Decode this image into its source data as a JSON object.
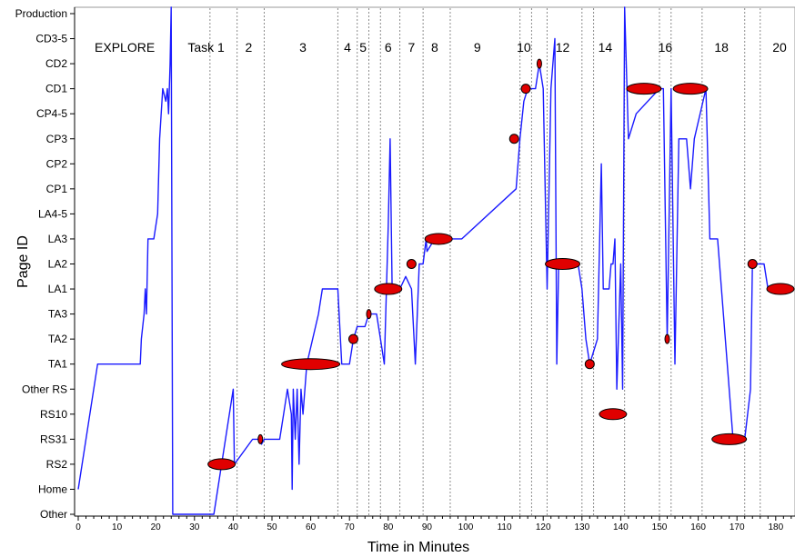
{
  "chart_data": {
    "type": "line",
    "xlabel": "Time in Minutes",
    "ylabel": "Page ID",
    "xlim": [
      0,
      185
    ],
    "x_ticks": [
      0,
      10,
      20,
      30,
      40,
      50,
      60,
      70,
      80,
      90,
      100,
      110,
      120,
      130,
      140,
      150,
      160,
      170,
      180
    ],
    "y_categories": [
      "Other",
      "Home",
      "RS2",
      "RS31",
      "RS10",
      "Other RS",
      "TA1",
      "TA2",
      "TA3",
      "LA1",
      "LA2",
      "LA3",
      "LA4-5",
      "CP1",
      "CP2",
      "CP3",
      "CP4-5",
      "CD1",
      "CD2",
      "CD3-5",
      "Production"
    ],
    "line_color": "#1a1aff",
    "marker_color": "#e00000",
    "task_boundaries": [
      34,
      41,
      48,
      67,
      72,
      75,
      78,
      83,
      89,
      96,
      114,
      117,
      121,
      130,
      133,
      141,
      150,
      153,
      161,
      172,
      176
    ],
    "segment_labels": [
      {
        "text": "EXPLORE",
        "x": 12
      },
      {
        "text": "Task 1",
        "x": 33
      },
      {
        "text": "2",
        "x": 44
      },
      {
        "text": "3",
        "x": 58
      },
      {
        "text": "4",
        "x": 69.5
      },
      {
        "text": "5",
        "x": 73.5
      },
      {
        "text": "6",
        "x": 80
      },
      {
        "text": "7",
        "x": 86
      },
      {
        "text": "8",
        "x": 92
      },
      {
        "text": "9",
        "x": 103
      },
      {
        "text": "10",
        "x": 115
      },
      {
        "text": "12",
        "x": 125
      },
      {
        "text": "14",
        "x": 136
      },
      {
        "text": "16",
        "x": 151.5
      },
      {
        "text": "18",
        "x": 166
      },
      {
        "text": "20",
        "x": 181
      }
    ],
    "series": [
      {
        "points": [
          [
            0,
            1
          ],
          [
            5,
            6
          ],
          [
            16,
            6
          ],
          [
            16.3,
            7
          ],
          [
            17,
            8
          ],
          [
            17.3,
            9
          ],
          [
            17.6,
            8
          ],
          [
            18,
            11
          ],
          [
            19.5,
            11
          ],
          [
            20.5,
            12
          ],
          [
            21,
            15
          ],
          [
            21.8,
            17
          ],
          [
            22.6,
            16.5
          ],
          [
            23,
            17
          ],
          [
            23.3,
            16
          ],
          [
            23.7,
            18
          ],
          [
            24,
            21
          ],
          [
            24.4,
            0
          ],
          [
            35,
            0
          ],
          [
            40,
            5
          ],
          [
            40.3,
            2
          ],
          [
            45,
            3
          ],
          [
            47,
            3
          ],
          [
            47.3,
            2.8
          ],
          [
            48,
            3
          ],
          [
            52,
            3
          ],
          [
            53,
            4
          ],
          [
            54,
            5
          ],
          [
            55,
            4
          ],
          [
            55.2,
            1
          ],
          [
            55.5,
            5
          ],
          [
            56,
            3
          ],
          [
            56.5,
            5
          ],
          [
            57,
            2
          ],
          [
            57.5,
            5
          ],
          [
            58,
            4
          ],
          [
            59,
            6
          ],
          [
            62,
            8
          ],
          [
            63,
            9
          ],
          [
            67,
            9
          ],
          [
            68,
            6
          ],
          [
            70,
            6
          ],
          [
            71,
            7
          ],
          [
            72,
            7.5
          ],
          [
            74,
            7.5
          ],
          [
            75,
            8
          ],
          [
            77,
            8
          ],
          [
            78,
            7
          ],
          [
            79,
            6
          ],
          [
            80,
            11.5
          ],
          [
            80.5,
            15
          ],
          [
            81,
            9
          ],
          [
            83,
            9
          ],
          [
            84.5,
            9.5
          ],
          [
            86,
            9
          ],
          [
            87,
            6
          ],
          [
            88,
            10
          ],
          [
            89,
            10
          ],
          [
            89.8,
            11
          ],
          [
            90,
            10.5
          ],
          [
            92,
            11
          ],
          [
            99,
            11
          ],
          [
            113,
            13
          ],
          [
            114,
            15
          ],
          [
            115,
            16.5
          ],
          [
            116,
            17
          ],
          [
            118,
            17
          ],
          [
            119,
            18
          ],
          [
            120,
            17
          ],
          [
            121,
            9
          ],
          [
            122,
            17
          ],
          [
            123,
            19
          ],
          [
            123.5,
            6
          ],
          [
            124,
            10
          ],
          [
            129,
            10
          ],
          [
            130,
            9
          ],
          [
            131,
            7
          ],
          [
            132,
            6
          ],
          [
            134,
            7
          ],
          [
            135,
            14
          ],
          [
            135.5,
            9
          ],
          [
            137,
            9
          ],
          [
            137.5,
            10
          ],
          [
            138,
            10
          ],
          [
            138.5,
            11
          ],
          [
            139,
            5
          ],
          [
            140,
            10
          ],
          [
            140.5,
            5
          ],
          [
            141,
            21
          ],
          [
            142,
            15
          ],
          [
            144,
            16
          ],
          [
            150,
            17
          ],
          [
            151,
            17
          ],
          [
            152,
            7
          ],
          [
            153,
            17
          ],
          [
            154,
            6
          ],
          [
            155,
            15
          ],
          [
            157,
            15
          ],
          [
            158,
            13
          ],
          [
            159,
            15
          ],
          [
            162,
            17
          ],
          [
            163,
            11
          ],
          [
            165,
            11
          ],
          [
            169,
            3
          ],
          [
            170,
            3
          ],
          [
            172,
            3
          ],
          [
            173.5,
            5
          ],
          [
            174,
            10
          ],
          [
            175,
            10
          ],
          [
            177,
            10
          ],
          [
            178,
            9
          ],
          [
            185,
            9
          ]
        ]
      }
    ],
    "markers": [
      {
        "x": 37,
        "y": 2,
        "size": "medium"
      },
      {
        "x": 47,
        "y": 3,
        "size": "tiny"
      },
      {
        "x": 60,
        "y": 6,
        "size": "xlarge"
      },
      {
        "x": 71,
        "y": 7,
        "size": "small"
      },
      {
        "x": 75,
        "y": 8,
        "size": "tiny"
      },
      {
        "x": 80,
        "y": 9,
        "size": "medium"
      },
      {
        "x": 86,
        "y": 10,
        "size": "small"
      },
      {
        "x": 93,
        "y": 11,
        "size": "medium"
      },
      {
        "x": 112.5,
        "y": 15,
        "size": "small"
      },
      {
        "x": 115.5,
        "y": 17,
        "size": "small"
      },
      {
        "x": 119,
        "y": 18,
        "size": "tiny"
      },
      {
        "x": 125,
        "y": 10,
        "size": "large"
      },
      {
        "x": 132,
        "y": 6,
        "size": "small"
      },
      {
        "x": 138,
        "y": 4,
        "size": "medium"
      },
      {
        "x": 146,
        "y": 17,
        "size": "large"
      },
      {
        "x": 152,
        "y": 7,
        "size": "tiny"
      },
      {
        "x": 158,
        "y": 17,
        "size": "large"
      },
      {
        "x": 168,
        "y": 3,
        "size": "large"
      },
      {
        "x": 174,
        "y": 10,
        "size": "small"
      },
      {
        "x": 182,
        "y": 9,
        "size": "medium"
      }
    ],
    "grid": false,
    "legend": "none"
  }
}
